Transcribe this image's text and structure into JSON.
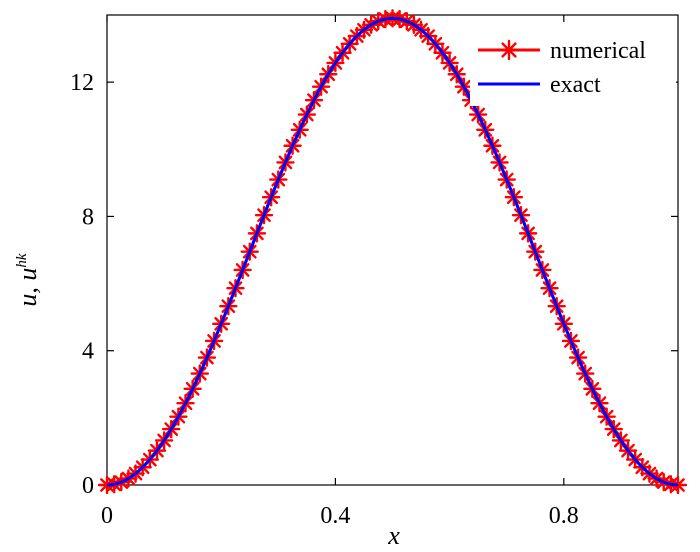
{
  "chart_data": {
    "type": "line",
    "xlabel": "x",
    "ylabel": "u, u",
    "ylabel_superscript": "hk",
    "xlim": [
      0,
      1
    ],
    "ylim": [
      0,
      14
    ],
    "xticks": [
      0,
      0.4,
      0.8
    ],
    "xtick_labels": [
      "0",
      "0.4",
      "0.8"
    ],
    "yticks": [
      0,
      4,
      8,
      12
    ],
    "ytick_labels": [
      "0",
      "4",
      "8",
      "12"
    ],
    "grid": false,
    "legend_position": "top-right",
    "series": [
      {
        "name": "numerical",
        "color": "#ff0000",
        "marker": "asterisk",
        "amplitude": 13.9,
        "x": [
          0,
          0.0125,
          0.025,
          0.0375,
          0.05,
          0.0625,
          0.075,
          0.0875,
          0.1,
          0.1125,
          0.125,
          0.1375,
          0.15,
          0.1625,
          0.175,
          0.1875,
          0.2,
          0.2125,
          0.225,
          0.2375,
          0.25,
          0.2625,
          0.275,
          0.2875,
          0.3,
          0.3125,
          0.325,
          0.3375,
          0.35,
          0.3625,
          0.375,
          0.3875,
          0.4,
          0.4125,
          0.425,
          0.4375,
          0.45,
          0.4625,
          0.475,
          0.4875,
          0.5,
          0.5125,
          0.525,
          0.5375,
          0.55,
          0.5625,
          0.575,
          0.5875,
          0.6,
          0.6125,
          0.625,
          0.6375,
          0.65,
          0.6625,
          0.675,
          0.6875,
          0.7,
          0.7125,
          0.725,
          0.7375,
          0.75,
          0.7625,
          0.775,
          0.7875,
          0.8,
          0.8125,
          0.825,
          0.8375,
          0.85,
          0.8625,
          0.875,
          0.8875,
          0.9,
          0.9125,
          0.925,
          0.9375,
          0.95,
          0.9625,
          0.975,
          0.9875,
          1
        ]
      },
      {
        "name": "exact",
        "color": "#0000ff",
        "marker": "none",
        "amplitude": 13.9,
        "samples": 201
      }
    ]
  }
}
